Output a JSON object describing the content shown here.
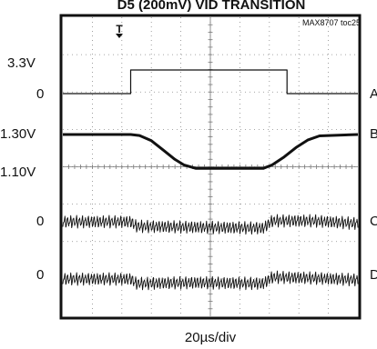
{
  "title": "D5 (200mV) VID TRANSITION",
  "figure_id": "MAX8707 toc25",
  "trigger_marker": "T",
  "left_labels": [
    "3.3V",
    "0",
    "1.30V",
    "1.10V",
    "0",
    "0"
  ],
  "right_labels": [
    "A",
    "B",
    "C",
    "D"
  ],
  "timebase_label": "20µs/div",
  "chart_data": {
    "type": "line",
    "title": "D5 (200mV) VID TRANSITION",
    "xlabel": "20µs/div",
    "grid": true,
    "x_divisions": 10,
    "y_divisions": 8,
    "series": [
      {
        "name": "A",
        "y_ref": "0",
        "level_marks": [
          "0",
          "3.3V"
        ],
        "x_div": [
          0,
          2.3,
          2.3,
          7.6,
          7.6,
          10
        ],
        "y_div": [
          0,
          0,
          1,
          1,
          0,
          0
        ]
      },
      {
        "name": "B",
        "y_ref": "1.10V",
        "level_marks": [
          "1.10V",
          "1.30V"
        ],
        "x_div": [
          0,
          2.3,
          2.6,
          3.0,
          3.4,
          3.8,
          4.1,
          4.5,
          6.8,
          7.1,
          7.5,
          7.9,
          8.3,
          8.7,
          10
        ],
        "y_div": [
          1,
          1,
          0.97,
          0.82,
          0.55,
          0.28,
          0.12,
          0.02,
          0.02,
          0.12,
          0.35,
          0.62,
          0.84,
          0.96,
          1
        ]
      },
      {
        "name": "C",
        "y_ref": "0",
        "level_marks": [
          "0"
        ],
        "description": "ripple",
        "x_div": [
          0,
          2.3,
          2.5,
          4.5,
          6.8,
          7.1,
          8.5,
          10
        ],
        "y_div": [
          0.3,
          0.3,
          0.05,
          0.0,
          -0.05,
          0.35,
          0.35,
          0.2
        ]
      },
      {
        "name": "D",
        "y_ref": "0",
        "level_marks": [
          "0"
        ],
        "description": "ripple",
        "x_div": [
          0,
          2.3,
          2.5,
          4.5,
          6.8,
          7.1,
          8.5,
          10
        ],
        "y_div": [
          0.2,
          0.2,
          -0.05,
          0.0,
          -0.05,
          0.3,
          0.25,
          0.15
        ]
      }
    ]
  }
}
